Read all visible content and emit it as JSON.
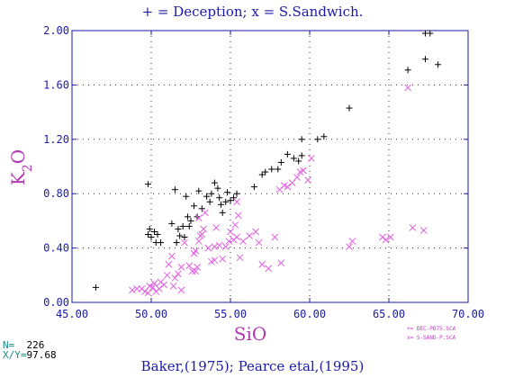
{
  "title": "+ = Deception; x = S.Sandwich.",
  "footer": "Baker,(1975); Pearce etal,(1995)",
  "stats": {
    "n_label": "N=",
    "n_value": "226",
    "xy_label": "X/Y=",
    "xy_value": "97.68"
  },
  "legend": {
    "line1": "+= DEC-PB75.SCA",
    "line2": "x= S-SAND-P.SCA"
  },
  "colors": {
    "axis": "#1a1aa6",
    "label": "#b03ab0",
    "deception": "#000000",
    "sandwich": "#e060e0"
  },
  "chart_data": {
    "type": "scatter",
    "title": "+ = Deception; x = S.Sandwich.",
    "xlabel": "SiO",
    "ylabel": "K2O",
    "xlim": [
      45,
      70
    ],
    "ylim": [
      0,
      2
    ],
    "x_ticks": [
      "45.00",
      "50.00",
      "55.00",
      "60.00",
      "65.00",
      "70.00"
    ],
    "y_ticks": [
      "0.00",
      "0.40",
      "0.80",
      "1.20",
      "1.60",
      "2.00"
    ],
    "grid": "dotted",
    "series": [
      {
        "marker": "+",
        "points": [
          [
            46.5,
            0.11
          ],
          [
            49.8,
            0.87
          ],
          [
            49.8,
            0.5
          ],
          [
            49.9,
            0.54
          ],
          [
            50.0,
            0.48
          ],
          [
            50.2,
            0.52
          ],
          [
            50.3,
            0.44
          ],
          [
            50.4,
            0.5
          ],
          [
            50.6,
            0.44
          ],
          [
            51.3,
            0.58
          ],
          [
            51.5,
            0.83
          ],
          [
            51.6,
            0.44
          ],
          [
            51.7,
            0.54
          ],
          [
            51.8,
            0.49
          ],
          [
            52.0,
            0.56
          ],
          [
            52.1,
            0.48
          ],
          [
            52.2,
            0.78
          ],
          [
            52.3,
            0.63
          ],
          [
            52.4,
            0.56
          ],
          [
            52.5,
            0.6
          ],
          [
            52.7,
            0.71
          ],
          [
            52.9,
            0.63
          ],
          [
            53.0,
            0.82
          ],
          [
            53.2,
            0.69
          ],
          [
            53.5,
            0.78
          ],
          [
            53.7,
            0.74
          ],
          [
            53.8,
            0.8
          ],
          [
            54.0,
            0.88
          ],
          [
            54.2,
            0.84
          ],
          [
            54.3,
            0.77
          ],
          [
            54.4,
            0.72
          ],
          [
            54.5,
            0.66
          ],
          [
            54.7,
            0.74
          ],
          [
            54.8,
            0.81
          ],
          [
            55.0,
            0.75
          ],
          [
            55.2,
            0.77
          ],
          [
            55.4,
            0.8
          ],
          [
            56.5,
            0.85
          ],
          [
            57.0,
            0.94
          ],
          [
            57.2,
            0.96
          ],
          [
            57.6,
            0.98
          ],
          [
            58.2,
            1.03
          ],
          [
            58.0,
            0.98
          ],
          [
            58.6,
            1.09
          ],
          [
            59.0,
            1.06
          ],
          [
            59.3,
            1.04
          ],
          [
            59.5,
            1.08
          ],
          [
            59.5,
            1.2
          ],
          [
            60.5,
            1.2
          ],
          [
            60.9,
            1.22
          ],
          [
            62.5,
            1.43
          ],
          [
            66.2,
            1.71
          ],
          [
            67.3,
            1.79
          ],
          [
            67.3,
            1.98
          ],
          [
            67.6,
            1.98
          ],
          [
            68.1,
            1.75
          ]
        ]
      },
      {
        "marker": "x",
        "points": [
          [
            48.8,
            0.09
          ],
          [
            49.1,
            0.1
          ],
          [
            49.4,
            0.1
          ],
          [
            49.6,
            0.08
          ],
          [
            49.8,
            0.07
          ],
          [
            49.9,
            0.12
          ],
          [
            50.1,
            0.11
          ],
          [
            50.2,
            0.14
          ],
          [
            50.3,
            0.08
          ],
          [
            50.5,
            0.1
          ],
          [
            50.6,
            0.15
          ],
          [
            50.8,
            0.13
          ],
          [
            51.0,
            0.2
          ],
          [
            51.1,
            0.28
          ],
          [
            51.3,
            0.34
          ],
          [
            51.4,
            0.12
          ],
          [
            51.5,
            0.18
          ],
          [
            51.7,
            0.21
          ],
          [
            51.9,
            0.09
          ],
          [
            51.9,
            0.26
          ],
          [
            52.1,
            0.44
          ],
          [
            52.4,
            0.27
          ],
          [
            52.6,
            0.23
          ],
          [
            52.7,
            0.36
          ],
          [
            52.8,
            0.23
          ],
          [
            52.8,
            0.38
          ],
          [
            52.9,
            0.26
          ],
          [
            53.0,
            0.45
          ],
          [
            53.0,
            0.62
          ],
          [
            53.1,
            0.49
          ],
          [
            53.2,
            0.5
          ],
          [
            53.3,
            0.54
          ],
          [
            53.4,
            0.66
          ],
          [
            53.6,
            0.4
          ],
          [
            53.8,
            0.3
          ],
          [
            54.0,
            0.31
          ],
          [
            54.0,
            0.41
          ],
          [
            54.1,
            0.55
          ],
          [
            54.3,
            0.42
          ],
          [
            54.5,
            0.32
          ],
          [
            54.7,
            0.41
          ],
          [
            54.9,
            0.45
          ],
          [
            55.0,
            0.52
          ],
          [
            55.2,
            0.46
          ],
          [
            55.3,
            0.57
          ],
          [
            55.4,
            0.48
          ],
          [
            55.4,
            0.74
          ],
          [
            55.5,
            0.64
          ],
          [
            55.6,
            0.33
          ],
          [
            55.8,
            0.45
          ],
          [
            56.2,
            0.49
          ],
          [
            56.6,
            0.52
          ],
          [
            56.8,
            0.44
          ],
          [
            57.0,
            0.28
          ],
          [
            57.4,
            0.25
          ],
          [
            57.8,
            0.48
          ],
          [
            58.1,
            0.83
          ],
          [
            58.2,
            0.29
          ],
          [
            58.4,
            0.86
          ],
          [
            58.6,
            0.85
          ],
          [
            58.9,
            0.88
          ],
          [
            59.2,
            0.92
          ],
          [
            59.4,
            0.96
          ],
          [
            59.6,
            0.97
          ],
          [
            59.9,
            0.9
          ],
          [
            60.1,
            1.06
          ],
          [
            62.5,
            0.41
          ],
          [
            62.7,
            0.45
          ],
          [
            64.6,
            0.48
          ],
          [
            64.8,
            0.46
          ],
          [
            65.1,
            0.48
          ],
          [
            66.2,
            1.58
          ],
          [
            66.5,
            0.55
          ],
          [
            67.2,
            0.53
          ]
        ]
      }
    ]
  }
}
